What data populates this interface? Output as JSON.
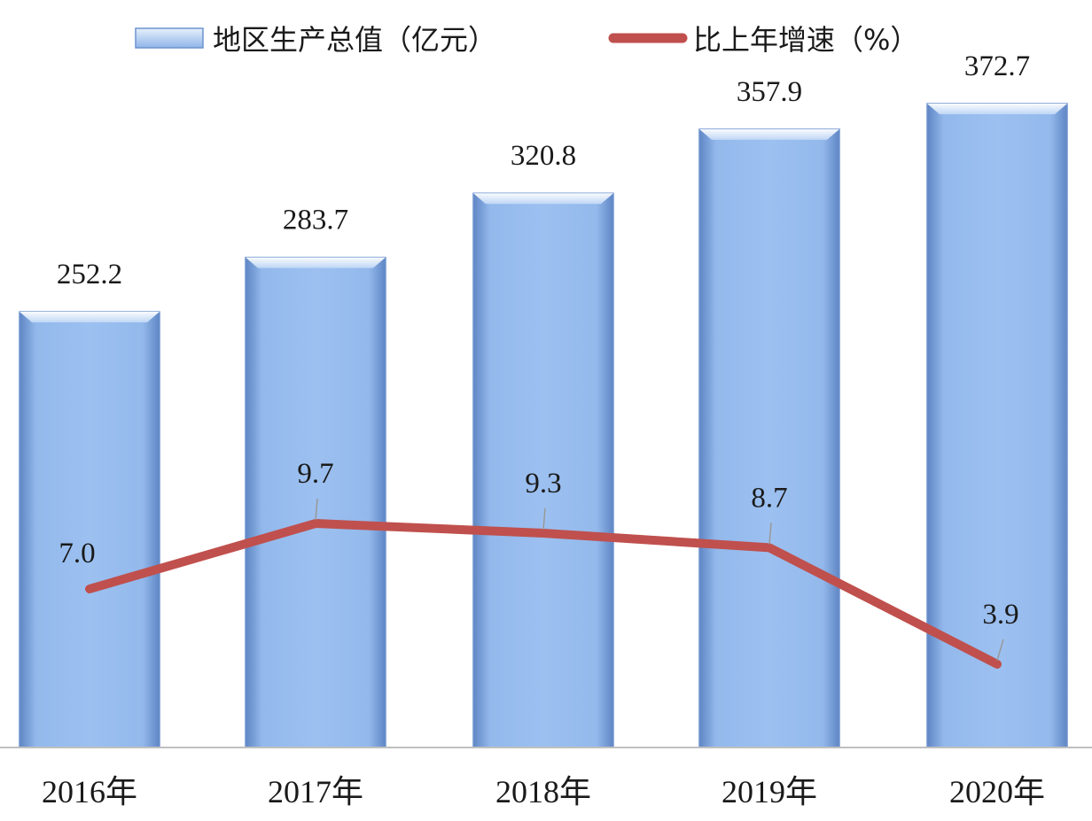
{
  "chart_data": {
    "type": "bar",
    "categories": [
      "2016年",
      "2017年",
      "2018年",
      "2019年",
      "2020年"
    ],
    "series": [
      {
        "name": "地区生产总值（亿元）",
        "kind": "bar",
        "values": [
          252.2,
          283.7,
          320.8,
          357.9,
          372.7
        ],
        "labels": [
          "252.2",
          "283.7",
          "320.8",
          "357.9",
          "372.7"
        ],
        "color": "#8fb4e8"
      },
      {
        "name": "比上年增速（%）",
        "kind": "line",
        "values": [
          7.0,
          9.7,
          9.3,
          8.7,
          3.9
        ],
        "labels": [
          "7.0",
          "9.7",
          "9.3",
          "8.7",
          "3.9"
        ],
        "color": "#c0504d"
      }
    ],
    "legend_position": "top",
    "grid": false
  }
}
